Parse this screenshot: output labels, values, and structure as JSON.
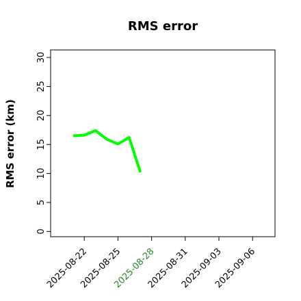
{
  "chart_data": {
    "type": "line",
    "title": "RMS error",
    "y_label": "RMS error (km)",
    "x": [
      "2025-08-21",
      "2025-08-22",
      "2025-08-23",
      "2025-08-24",
      "2025-08-25",
      "2025-08-26",
      "2025-08-27"
    ],
    "series": [
      {
        "name": "RMS error",
        "color": "#00ff00",
        "values": [
          16.5,
          16.6,
          17.4,
          15.9,
          15.1,
          16.2,
          10.2
        ]
      }
    ],
    "xlim": [
      "2025-08-19",
      "2025-09-08"
    ],
    "xticks": [
      "2025-08-22",
      "2025-08-25",
      "2025-08-28",
      "2025-08-31",
      "2025-09-03",
      "2025-09-06"
    ],
    "xtick_colors": [
      "#000000",
      "#000000",
      "#228b22",
      "#000000",
      "#000000",
      "#000000"
    ],
    "ylim": [
      -0.9,
      31.3
    ],
    "yticks": [
      0,
      5,
      10,
      15,
      20,
      25,
      30
    ],
    "grid": false
  }
}
